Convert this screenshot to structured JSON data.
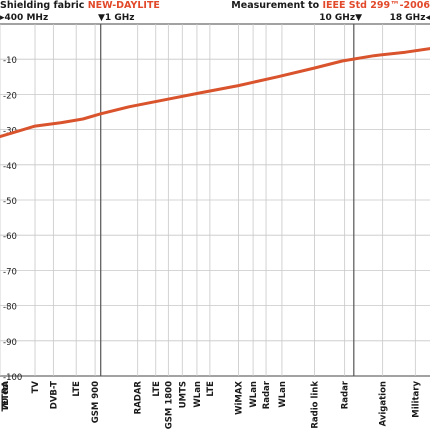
{
  "header": {
    "left_prefix": "Shielding fabric ",
    "left_product": "NEW-DAYLITE",
    "right_prefix": "Measurement to ",
    "right_standard": "IEEE Std 299™-2006"
  },
  "freq_markers": {
    "start": "400 MHz",
    "m1": "1 GHz",
    "m10": "10 GHz",
    "m18": "18 GHz"
  },
  "colors": {
    "series": "#d9532c",
    "accent_text": "#e2492a",
    "grid": "#c8c8c8",
    "marker_line": "#555555"
  },
  "chart_data": {
    "type": "line",
    "title": "Shielding fabric NEW-DAYLITE",
    "subtitle": "Measurement to IEEE Std 299™-2006",
    "xscale": "log",
    "xlim_ghz": [
      0.4,
      20
    ],
    "ylim": [
      -100,
      0
    ],
    "grid": true,
    "yticks": [
      -10,
      -20,
      -30,
      -40,
      -50,
      -60,
      -70,
      -80,
      -90,
      -100
    ],
    "series": [
      {
        "x_ghz": [
          0.4,
          0.55,
          0.7,
          0.85,
          1.0,
          1.3,
          1.8,
          2.5,
          3.5,
          5.0,
          7.0,
          9.0,
          12.0,
          16.0,
          20.0
        ],
        "values": [
          -32,
          -29,
          -28,
          -27,
          -25.5,
          -23.5,
          -21.5,
          -19.5,
          -17.5,
          -15,
          -12.5,
          -10.5,
          -9,
          -8,
          -7
        ]
      }
    ],
    "band_labels": [
      {
        "label": "TETRA\n70 cm",
        "x_ghz": 0.4
      },
      {
        "label": "TV",
        "x_ghz": 0.55
      },
      {
        "label": "DVB-T",
        "x_ghz": 0.65
      },
      {
        "label": "LTE",
        "x_ghz": 0.8
      },
      {
        "label": "GSM 900",
        "x_ghz": 0.95
      },
      {
        "label": "RADAR",
        "x_ghz": 1.4
      },
      {
        "label": "LTE",
        "x_ghz": 1.65
      },
      {
        "label": "GSM 1800",
        "x_ghz": 1.85
      },
      {
        "label": "UMTS",
        "x_ghz": 2.1
      },
      {
        "label": "WLan",
        "x_ghz": 2.4
      },
      {
        "label": "LTE",
        "x_ghz": 2.7
      },
      {
        "label": "WiMAX",
        "x_ghz": 3.5
      },
      {
        "label": "WLan",
        "x_ghz": 4.0
      },
      {
        "label": "Radar",
        "x_ghz": 4.5
      },
      {
        "label": "WLan",
        "x_ghz": 5.2
      },
      {
        "label": "Radio link",
        "x_ghz": 7.0
      },
      {
        "label": "Radar",
        "x_ghz": 9.2
      },
      {
        "label": "Avigation",
        "x_ghz": 13.0
      },
      {
        "label": "Military",
        "x_ghz": 17.5
      }
    ]
  }
}
